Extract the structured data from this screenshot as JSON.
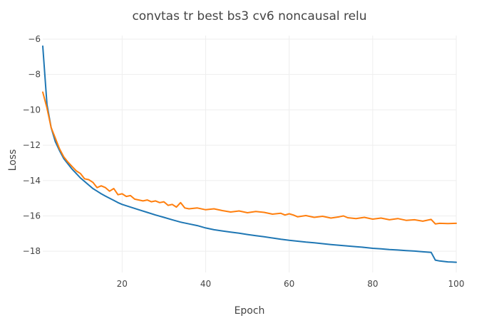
{
  "chart_data": {
    "type": "line",
    "title": "convtas tr best bs3 cv6 noncausal relu",
    "xlabel": "Epoch",
    "ylabel": "Loss",
    "xlim": [
      1,
      100
    ],
    "ylim": [
      -19.2,
      -5.8
    ],
    "x_ticks": [
      20,
      40,
      60,
      80,
      100
    ],
    "y_ticks": [
      -6,
      -8,
      -10,
      -12,
      -14,
      -16,
      -18
    ],
    "x_tick_labels": [
      "20",
      "40",
      "60",
      "80",
      "100"
    ],
    "y_tick_labels": [
      "−6",
      "−8",
      "−10",
      "−12",
      "−14",
      "−16",
      "−18"
    ],
    "grid": true,
    "legend": "none",
    "colors": {
      "blue": "#1f77b4",
      "orange": "#ff7f0e",
      "grid": "#eeeeee",
      "text": "#444444"
    },
    "series": [
      {
        "color": "#1f77b4",
        "points": [
          [
            1,
            -6.4
          ],
          [
            2,
            -9.7
          ],
          [
            3,
            -11.0
          ],
          [
            4,
            -11.8
          ],
          [
            5,
            -12.3
          ],
          [
            6,
            -12.75
          ],
          [
            7,
            -13.05
          ],
          [
            8,
            -13.35
          ],
          [
            9,
            -13.6
          ],
          [
            10,
            -13.85
          ],
          [
            11,
            -14.05
          ],
          [
            12,
            -14.25
          ],
          [
            13,
            -14.45
          ],
          [
            14,
            -14.6
          ],
          [
            15,
            -14.75
          ],
          [
            16,
            -14.88
          ],
          [
            17,
            -15.0
          ],
          [
            18,
            -15.12
          ],
          [
            19,
            -15.25
          ],
          [
            20,
            -15.35
          ],
          [
            22,
            -15.5
          ],
          [
            24,
            -15.65
          ],
          [
            26,
            -15.8
          ],
          [
            28,
            -15.95
          ],
          [
            30,
            -16.08
          ],
          [
            32,
            -16.22
          ],
          [
            34,
            -16.35
          ],
          [
            36,
            -16.45
          ],
          [
            38,
            -16.55
          ],
          [
            40,
            -16.68
          ],
          [
            42,
            -16.78
          ],
          [
            44,
            -16.85
          ],
          [
            46,
            -16.92
          ],
          [
            48,
            -16.98
          ],
          [
            50,
            -17.05
          ],
          [
            52,
            -17.12
          ],
          [
            54,
            -17.18
          ],
          [
            56,
            -17.25
          ],
          [
            58,
            -17.32
          ],
          [
            60,
            -17.38
          ],
          [
            62,
            -17.43
          ],
          [
            64,
            -17.48
          ],
          [
            66,
            -17.52
          ],
          [
            68,
            -17.57
          ],
          [
            70,
            -17.62
          ],
          [
            72,
            -17.66
          ],
          [
            74,
            -17.7
          ],
          [
            76,
            -17.74
          ],
          [
            78,
            -17.78
          ],
          [
            80,
            -17.83
          ],
          [
            82,
            -17.86
          ],
          [
            84,
            -17.9
          ],
          [
            86,
            -17.93
          ],
          [
            88,
            -17.96
          ],
          [
            90,
            -17.99
          ],
          [
            92,
            -18.03
          ],
          [
            94,
            -18.06
          ],
          [
            95,
            -18.5
          ],
          [
            96,
            -18.55
          ],
          [
            98,
            -18.6
          ],
          [
            100,
            -18.62
          ]
        ]
      },
      {
        "color": "#ff7f0e",
        "points": [
          [
            1,
            -9.0
          ],
          [
            2,
            -9.9
          ],
          [
            3,
            -11.0
          ],
          [
            4,
            -11.6
          ],
          [
            5,
            -12.2
          ],
          [
            6,
            -12.65
          ],
          [
            7,
            -12.95
          ],
          [
            8,
            -13.2
          ],
          [
            9,
            -13.45
          ],
          [
            10,
            -13.6
          ],
          [
            11,
            -13.9
          ],
          [
            12,
            -13.95
          ],
          [
            13,
            -14.1
          ],
          [
            14,
            -14.4
          ],
          [
            15,
            -14.3
          ],
          [
            16,
            -14.4
          ],
          [
            17,
            -14.6
          ],
          [
            18,
            -14.45
          ],
          [
            19,
            -14.8
          ],
          [
            20,
            -14.75
          ],
          [
            21,
            -14.9
          ],
          [
            22,
            -14.85
          ],
          [
            23,
            -15.05
          ],
          [
            24,
            -15.1
          ],
          [
            25,
            -15.15
          ],
          [
            26,
            -15.1
          ],
          [
            27,
            -15.2
          ],
          [
            28,
            -15.15
          ],
          [
            29,
            -15.25
          ],
          [
            30,
            -15.2
          ],
          [
            31,
            -15.4
          ],
          [
            32,
            -15.35
          ],
          [
            33,
            -15.5
          ],
          [
            34,
            -15.25
          ],
          [
            35,
            -15.55
          ],
          [
            36,
            -15.6
          ],
          [
            38,
            -15.55
          ],
          [
            40,
            -15.65
          ],
          [
            42,
            -15.6
          ],
          [
            44,
            -15.7
          ],
          [
            46,
            -15.78
          ],
          [
            48,
            -15.72
          ],
          [
            50,
            -15.82
          ],
          [
            52,
            -15.75
          ],
          [
            54,
            -15.8
          ],
          [
            56,
            -15.9
          ],
          [
            58,
            -15.85
          ],
          [
            59,
            -15.95
          ],
          [
            60,
            -15.88
          ],
          [
            61,
            -15.95
          ],
          [
            62,
            -16.05
          ],
          [
            64,
            -15.98
          ],
          [
            66,
            -16.08
          ],
          [
            68,
            -16.02
          ],
          [
            70,
            -16.12
          ],
          [
            72,
            -16.05
          ],
          [
            73,
            -16.0
          ],
          [
            74,
            -16.1
          ],
          [
            76,
            -16.15
          ],
          [
            78,
            -16.08
          ],
          [
            80,
            -16.18
          ],
          [
            82,
            -16.12
          ],
          [
            84,
            -16.22
          ],
          [
            86,
            -16.15
          ],
          [
            88,
            -16.25
          ],
          [
            90,
            -16.22
          ],
          [
            92,
            -16.3
          ],
          [
            94,
            -16.2
          ],
          [
            95,
            -16.45
          ],
          [
            96,
            -16.42
          ],
          [
            98,
            -16.43
          ],
          [
            100,
            -16.42
          ]
        ]
      }
    ]
  }
}
